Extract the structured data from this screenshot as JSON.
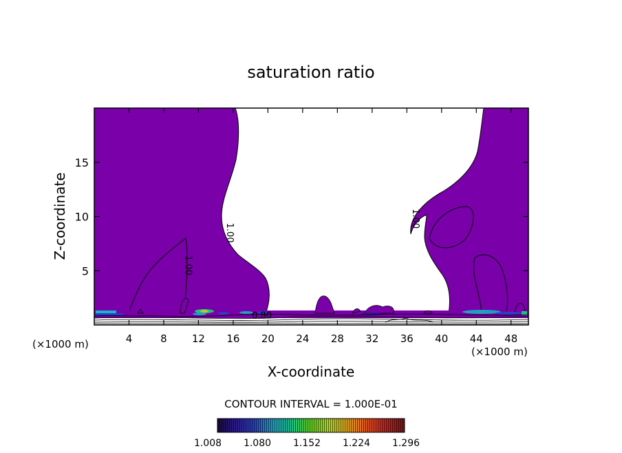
{
  "chart_data": {
    "type": "contour",
    "title": "saturation ratio",
    "xlabel": "X-coordinate",
    "ylabel": "Z-coordinate",
    "x_unit": "(×1000 m)",
    "x_ticks": [
      4,
      8,
      12,
      16,
      20,
      24,
      28,
      32,
      36,
      40,
      44,
      48
    ],
    "y_ticks": [
      5,
      10,
      15
    ],
    "xlim": [
      0,
      50
    ],
    "ylim": [
      0,
      20
    ],
    "contour_labels": [
      {
        "text": "1.00",
        "x": 10.5,
        "z": 5.5
      },
      {
        "text": "1.00",
        "x": 15.3,
        "z": 8.5
      },
      {
        "text": "1.00",
        "x": 36.7,
        "z": 9.8
      },
      {
        "text": "0.80",
        "x": 19.3,
        "z": 0.6
      }
    ],
    "contour_interval_text": "CONTOUR INTERVAL = 1.000E-01",
    "colorbar": {
      "tick_labels": [
        "1.008",
        "1.080",
        "1.152",
        "1.224",
        "1.296"
      ],
      "colors": [
        "#1a0a3a",
        "#2a1a8a",
        "#2a40c0",
        "#20a0c0",
        "#20c080",
        "#60d020",
        "#b0d020",
        "#e0a020",
        "#e05020",
        "#c02020",
        "#701818"
      ]
    },
    "fill_color": "#7a00aa"
  }
}
